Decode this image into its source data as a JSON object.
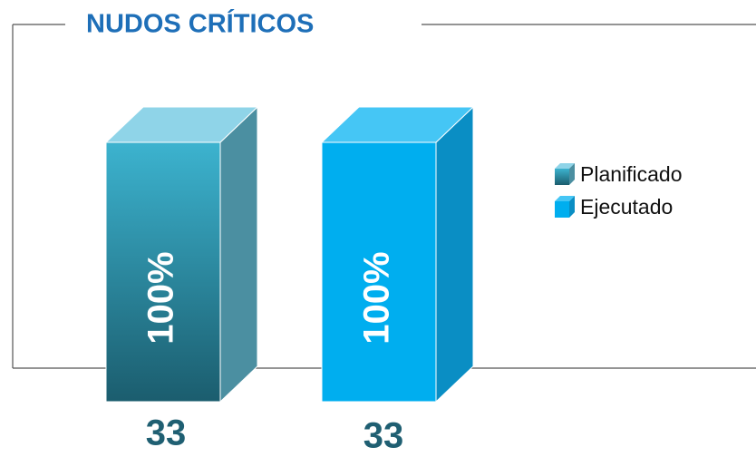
{
  "chart_data": {
    "type": "bar3d",
    "title": "NUDOS CRÍTICOS",
    "series": [
      {
        "name": "Planificado",
        "color": "#2a8fa8",
        "values": [
          100
        ],
        "value_labels": [
          "100%"
        ],
        "count": 33
      },
      {
        "name": "Ejecutado",
        "color": "#00aeef",
        "values": [
          100
        ],
        "value_labels": [
          "100%"
        ],
        "count": 33
      }
    ],
    "legend": "right"
  }
}
